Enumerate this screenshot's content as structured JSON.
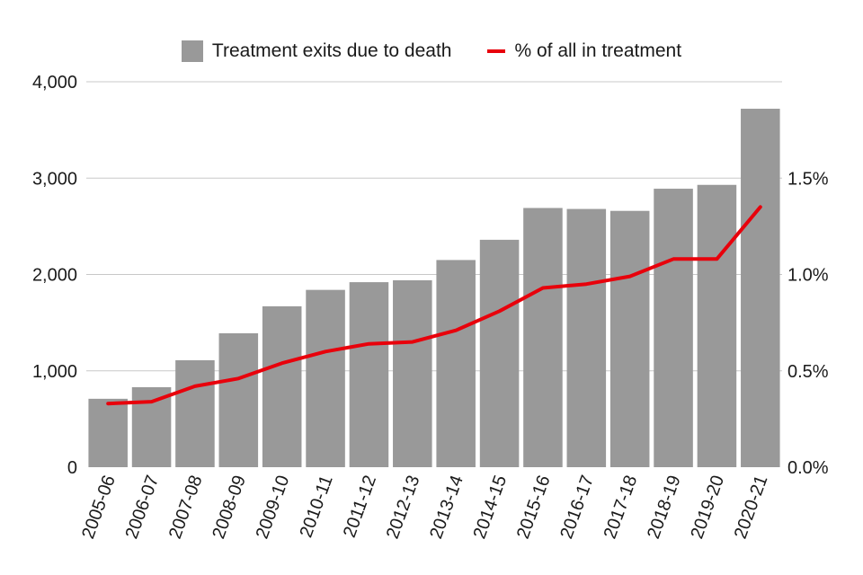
{
  "chart_data": {
    "type": "bar",
    "title": "",
    "xlabel": "",
    "ylabel": "",
    "categories": [
      "2005-06",
      "2006-07",
      "2007-08",
      "2008-09",
      "2009-10",
      "2010-11",
      "2011-12",
      "2012-13",
      "2013-14",
      "2014-15",
      "2015-16",
      "2016-17",
      "2017-18",
      "2018-19",
      "2019-20",
      "2020-21"
    ],
    "series": [
      {
        "name": "Treatment exits due to death",
        "axis": "left",
        "kind": "bar",
        "color": "#999999",
        "values": [
          710,
          830,
          1110,
          1390,
          1670,
          1840,
          1920,
          1940,
          2150,
          2360,
          2690,
          2680,
          2660,
          2890,
          2930,
          3720
        ]
      },
      {
        "name": "% of all in treatment",
        "axis": "right",
        "kind": "line",
        "color": "#e8000b",
        "values": [
          0.33,
          0.34,
          0.42,
          0.46,
          0.54,
          0.6,
          0.64,
          0.65,
          0.71,
          0.81,
          0.93,
          0.95,
          0.99,
          1.08,
          1.08,
          1.35
        ]
      }
    ],
    "ylim": [
      0,
      4000
    ],
    "y_ticks": [
      "0",
      "1,000",
      "2,000",
      "3,000",
      "4,000"
    ],
    "y_tick_values": [
      0,
      1000,
      2000,
      3000,
      4000
    ],
    "y2lim": [
      0,
      2.0
    ],
    "y2_ticks": [
      "0.0%",
      "0.5%",
      "1.0%",
      "1.5%"
    ],
    "y2_tick_values": [
      0,
      0.5,
      1.0,
      1.5
    ],
    "grid": true,
    "legend_position": "top-center"
  }
}
